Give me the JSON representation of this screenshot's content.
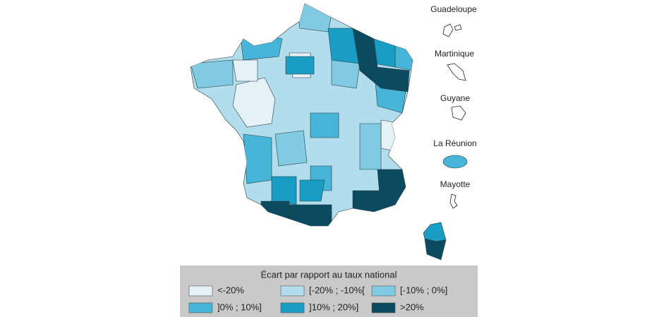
{
  "overseas": [
    "Guadeloupe",
    "Martinique",
    "Guyane",
    "La Réunion",
    "Mayotte"
  ],
  "legend": {
    "title": "Écart par rapport au taux national",
    "items": [
      {
        "label": "<-20%",
        "color": "#e4f2f7"
      },
      {
        "label": "[-20% ; -10%[",
        "color": "#b2dded"
      },
      {
        "label": "[-10% ; 0%]",
        "color": "#80cbe2"
      },
      {
        "label": "]0% ; 10%]",
        "color": "#47b5d7"
      },
      {
        "label": "]10% ; 20%]",
        "color": "#1a9dc5"
      },
      {
        "label": ">20%",
        "color": "#0c4a5f"
      }
    ]
  }
}
